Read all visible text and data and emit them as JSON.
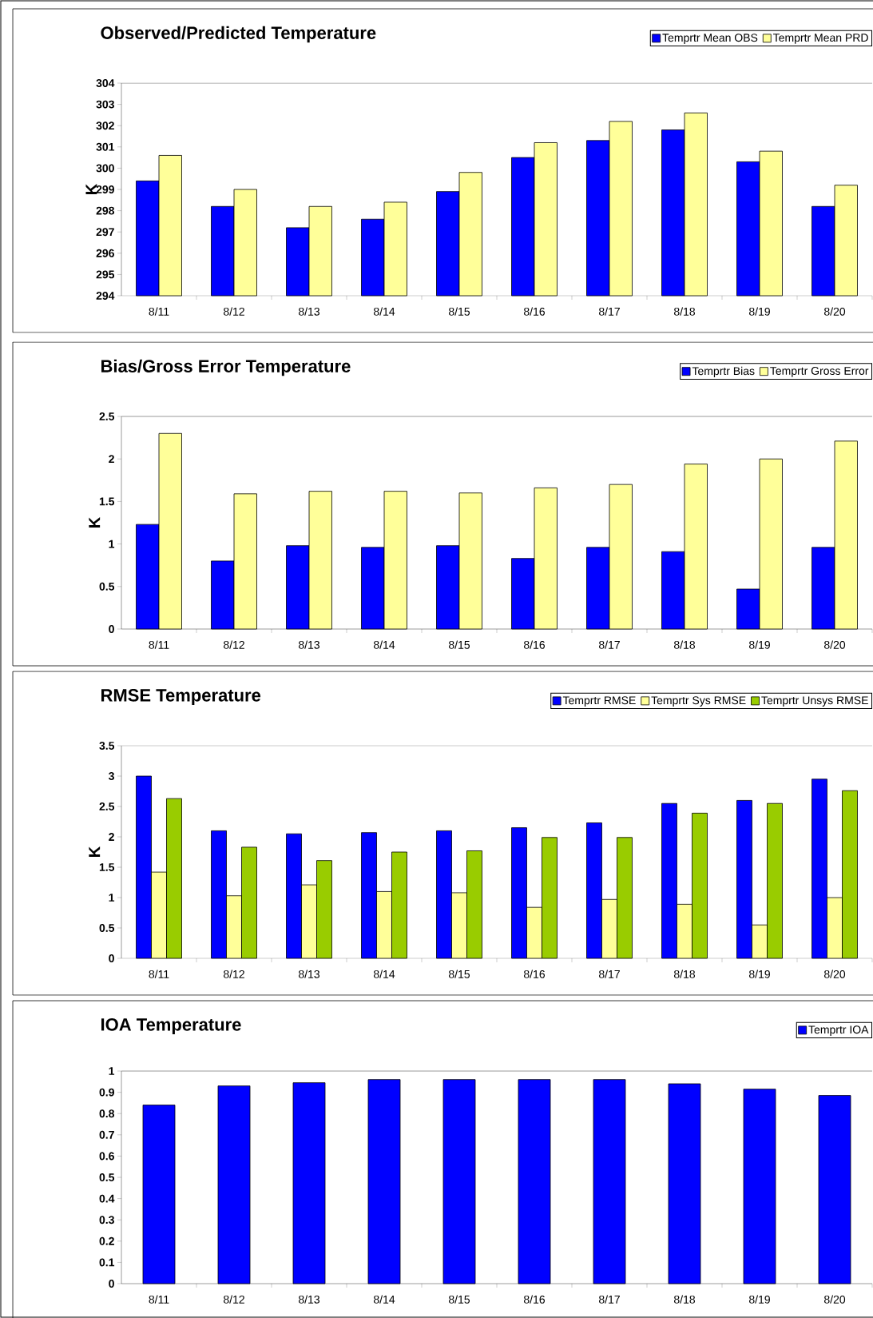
{
  "chart_data": [
    {
      "type": "bar",
      "title": "Observed/Predicted Temperature",
      "ylabel": "K",
      "categories": [
        "8/11",
        "8/12",
        "8/13",
        "8/14",
        "8/15",
        "8/16",
        "8/17",
        "8/18",
        "8/19",
        "8/20"
      ],
      "series": [
        {
          "name": "Temprtr     Mean OBS",
          "color": "#0000ff",
          "values": [
            299.4,
            298.2,
            297.2,
            297.6,
            298.9,
            300.5,
            301.3,
            301.8,
            300.3,
            298.2
          ]
        },
        {
          "name": "Temprtr     Mean PRD",
          "color": "#ffff99",
          "values": [
            300.6,
            299.0,
            298.2,
            298.4,
            299.8,
            301.2,
            302.2,
            302.6,
            300.8,
            299.2
          ]
        }
      ],
      "ylim": [
        294,
        304
      ],
      "yticks": [
        294,
        295,
        296,
        297,
        298,
        299,
        300,
        301,
        302,
        303,
        304
      ],
      "legend": "top right"
    },
    {
      "type": "bar",
      "title": "Bias/Gross Error Temperature",
      "ylabel": "K",
      "categories": [
        "8/11",
        "8/12",
        "8/13",
        "8/14",
        "8/15",
        "8/16",
        "8/17",
        "8/18",
        "8/19",
        "8/20"
      ],
      "series": [
        {
          "name": "Temprtr      Bias",
          "color": "#0000ff",
          "values": [
            1.23,
            0.8,
            0.98,
            0.96,
            0.98,
            0.83,
            0.96,
            0.91,
            0.47,
            0.96
          ]
        },
        {
          "name": "Temprtr   Gross Error",
          "color": "#ffff99",
          "values": [
            2.3,
            1.59,
            1.62,
            1.62,
            1.6,
            1.66,
            1.7,
            1.94,
            2.0,
            2.21
          ]
        }
      ],
      "ylim": [
        0,
        2.5
      ],
      "yticks": [
        0,
        0.5,
        1,
        1.5,
        2,
        2.5
      ],
      "legend": "top right"
    },
    {
      "type": "bar",
      "title": "RMSE Temperature",
      "ylabel": "K",
      "categories": [
        "8/11",
        "8/12",
        "8/13",
        "8/14",
        "8/15",
        "8/16",
        "8/17",
        "8/18",
        "8/19",
        "8/20"
      ],
      "series": [
        {
          "name": "Temprtr      RMSE",
          "color": "#0000ff",
          "values": [
            3.0,
            2.1,
            2.05,
            2.07,
            2.1,
            2.15,
            2.23,
            2.55,
            2.6,
            2.95
          ]
        },
        {
          "name": "Temprtr     Sys RMSE",
          "color": "#ffff99",
          "values": [
            1.42,
            1.03,
            1.21,
            1.1,
            1.08,
            0.84,
            0.97,
            0.89,
            0.55,
            1.0
          ]
        },
        {
          "name": "Temprtr   Unsys RMSE",
          "color": "#99cc00",
          "values": [
            2.63,
            1.83,
            1.61,
            1.75,
            1.77,
            1.99,
            1.99,
            2.39,
            2.55,
            2.76
          ]
        }
      ],
      "ylim": [
        0,
        3.5
      ],
      "yticks": [
        0,
        0.5,
        1,
        1.5,
        2,
        2.5,
        3,
        3.5
      ],
      "legend": "top right"
    },
    {
      "type": "bar",
      "title": "IOA Temperature",
      "categories": [
        "8/11",
        "8/12",
        "8/13",
        "8/14",
        "8/15",
        "8/16",
        "8/17",
        "8/18",
        "8/19",
        "8/20"
      ],
      "series": [
        {
          "name": "Temprtr          IOA",
          "color": "#0000ff",
          "values": [
            0.84,
            0.93,
            0.945,
            0.96,
            0.96,
            0.96,
            0.96,
            0.94,
            0.915,
            0.885
          ]
        }
      ],
      "ylim": [
        0,
        1
      ],
      "yticks": [
        0,
        0.1,
        0.2,
        0.3,
        0.4,
        0.5,
        0.6,
        0.7,
        0.8,
        0.9,
        1
      ],
      "legend": "top right"
    }
  ]
}
